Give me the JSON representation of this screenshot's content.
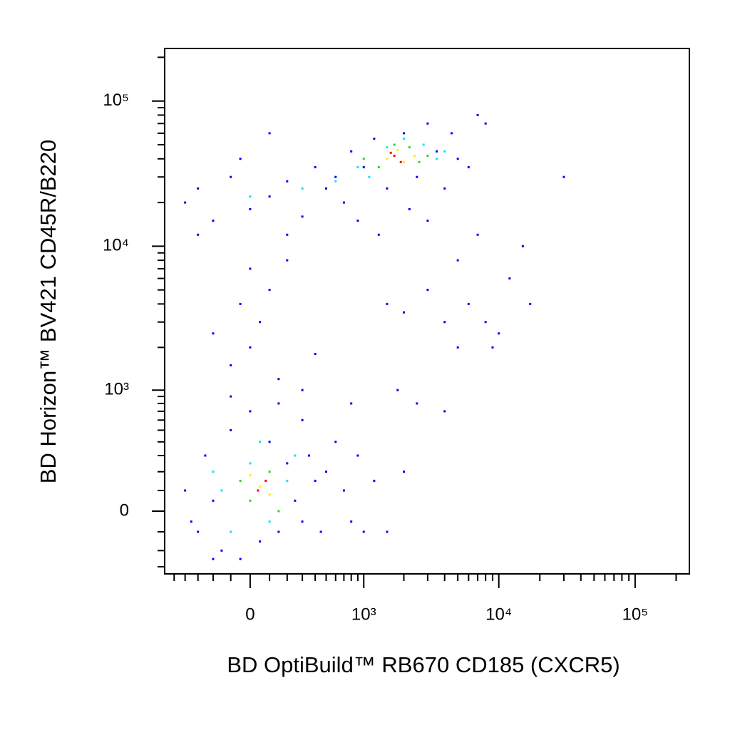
{
  "chart_data": {
    "type": "scatter",
    "x_label": "BD OptiBuild™ RB670 CD185 (CXCR5)",
    "y_label": "BD Horizon™ BV421 CD45R/B220",
    "xscale": "biexponential",
    "yscale": "biexponential",
    "xlim": [
      -600,
      250000
    ],
    "ylim": [
      -350,
      230000
    ],
    "xticks": [
      0,
      {
        "value": 1000,
        "label": "10³"
      },
      {
        "value": 10000,
        "label": "10⁴"
      },
      {
        "value": 100000,
        "label": "10⁵"
      }
    ],
    "yticks": [
      0,
      {
        "value": 1000,
        "label": "10³"
      },
      {
        "value": 10000,
        "label": "10⁴"
      },
      {
        "value": 100000,
        "label": "10⁵"
      }
    ],
    "xticks_minor": [
      -500,
      -400,
      -300,
      -200,
      -100,
      100,
      200,
      300,
      400,
      500,
      600,
      700,
      800,
      900,
      2000,
      3000,
      4000,
      5000,
      6000,
      7000,
      8000,
      9000,
      20000,
      30000,
      40000,
      50000,
      60000,
      70000,
      80000,
      90000,
      200000
    ],
    "yticks_minor": [
      -300,
      -200,
      -100,
      100,
      200,
      300,
      400,
      500,
      600,
      700,
      800,
      900,
      2000,
      3000,
      4000,
      5000,
      6000,
      7000,
      8000,
      9000,
      20000,
      30000,
      40000,
      50000,
      60000,
      70000,
      80000,
      90000,
      200000
    ],
    "series": [
      {
        "color": "#0000ff",
        "x": [
          -400,
          -300,
          -250,
          -200,
          -150,
          -100,
          -50,
          0,
          50,
          100,
          150,
          200,
          250,
          300,
          350,
          400,
          450,
          500,
          600,
          700,
          800,
          -350,
          -200,
          300,
          150,
          -100,
          900,
          1200,
          2000,
          1500,
          -100,
          0,
          50,
          -50,
          100,
          0,
          150,
          -200,
          200,
          -300,
          300,
          400,
          -400,
          -300,
          -200,
          -100,
          0,
          100,
          200,
          300,
          -50,
          100,
          200,
          400,
          500,
          600,
          700,
          800,
          1000,
          1200,
          1500,
          2000,
          2500,
          3000,
          3500,
          4000,
          4500,
          5000,
          6000,
          7000,
          8000,
          900,
          1300,
          2200,
          3000,
          3000,
          4000,
          5000,
          6000,
          7000,
          8000,
          10000,
          12000,
          15000,
          17000,
          9000,
          2000,
          1500,
          5000,
          30000,
          2500,
          4000,
          1800,
          800,
          1000
        ],
        "y": [
          100,
          -100,
          300,
          50,
          -200,
          500,
          -250,
          700,
          -150,
          400,
          -100,
          250,
          50,
          -50,
          300,
          150,
          -100,
          200,
          400,
          100,
          -50,
          -50,
          -250,
          600,
          800,
          900,
          300,
          150,
          200,
          -100,
          1500,
          2000,
          3000,
          4000,
          5000,
          7000,
          1200,
          2500,
          8000,
          12000,
          1000,
          1800,
          20000,
          25000,
          15000,
          30000,
          18000,
          22000,
          28000,
          16000,
          40000,
          60000,
          12000,
          35000,
          25000,
          30000,
          20000,
          45000,
          35000,
          55000,
          25000,
          60000,
          30000,
          70000,
          45000,
          25000,
          60000,
          40000,
          35000,
          80000,
          70000,
          15000,
          12000,
          18000,
          15000,
          5000,
          3000,
          8000,
          4000,
          12000,
          3000,
          2500,
          6000,
          10000,
          4000,
          2000,
          3500,
          4000,
          2000,
          30000,
          800,
          700,
          1000,
          800,
          -100
        ]
      },
      {
        "color": "#00e5ff",
        "x": [
          -150,
          0,
          100,
          200,
          -100,
          50,
          250,
          -200,
          300,
          600,
          900,
          1100,
          2800,
          3500,
          1500,
          0,
          2000,
          4000
        ],
        "y": [
          100,
          250,
          -50,
          150,
          -100,
          400,
          300,
          200,
          25000,
          28000,
          35000,
          30000,
          50000,
          40000,
          48000,
          22000,
          55000,
          45000
        ]
      },
      {
        "color": "#22dd22",
        "x": [
          -50,
          100,
          0,
          150,
          1000,
          1300,
          2200,
          2600,
          1700,
          3000
        ],
        "y": [
          150,
          200,
          50,
          0,
          40000,
          35000,
          48000,
          38000,
          50000,
          42000
        ]
      },
      {
        "color": "#ffee00",
        "x": [
          50,
          0,
          100,
          1500,
          2000,
          1800,
          2400
        ],
        "y": [
          120,
          180,
          80,
          40000,
          38000,
          46000,
          42000
        ]
      },
      {
        "color": "#ff0000",
        "x": [
          40,
          80,
          1700,
          1900,
          1600
        ],
        "y": [
          100,
          150,
          42000,
          38000,
          44000
        ]
      }
    ]
  }
}
